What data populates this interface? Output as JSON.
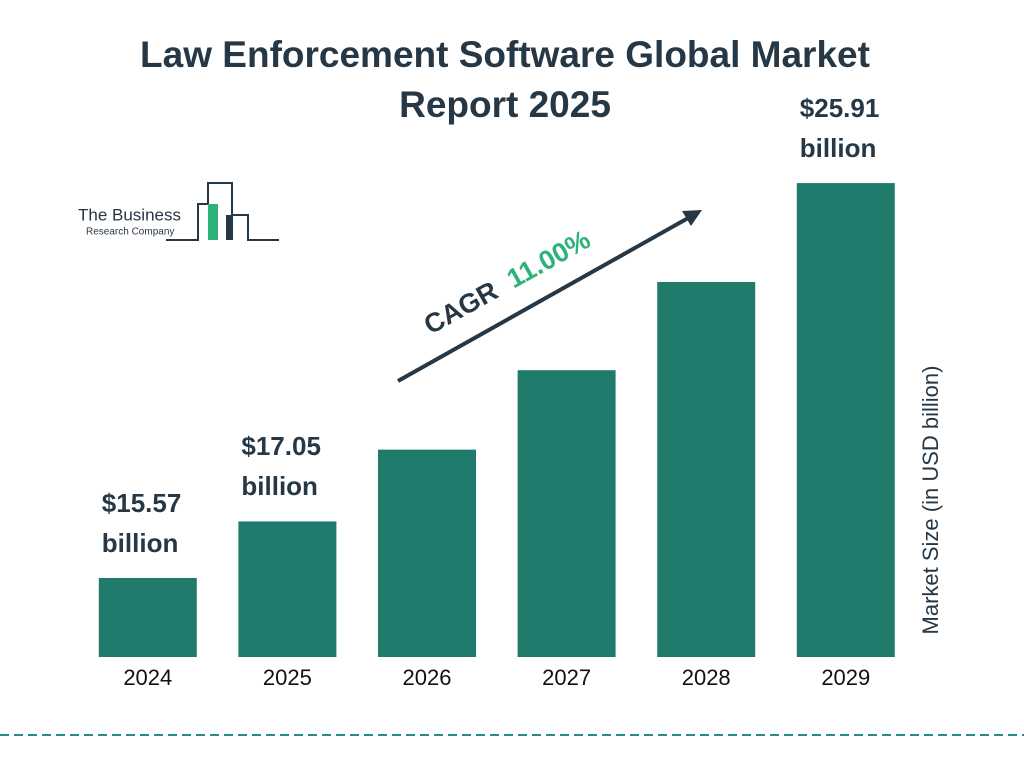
{
  "chart_data": {
    "type": "bar",
    "title": "Law Enforcement Software Global Market Report 2025",
    "categories": [
      "2024",
      "2025",
      "2026",
      "2027",
      "2028",
      "2029"
    ],
    "values": [
      15.57,
      17.05,
      18.93,
      21.01,
      23.32,
      25.91
    ],
    "value_labels": [
      "$15.57 billion",
      "$17.05 billion",
      null,
      null,
      null,
      "$25.91 billion"
    ],
    "color": "#217b6c",
    "ylim": [
      13.5,
      27.3
    ],
    "y_label": "Market Size (in USD billion)",
    "annotation": {
      "label": "CAGR",
      "value": "11.00%"
    },
    "logo": {
      "line1": "The Business",
      "line2": "Research Company"
    }
  }
}
